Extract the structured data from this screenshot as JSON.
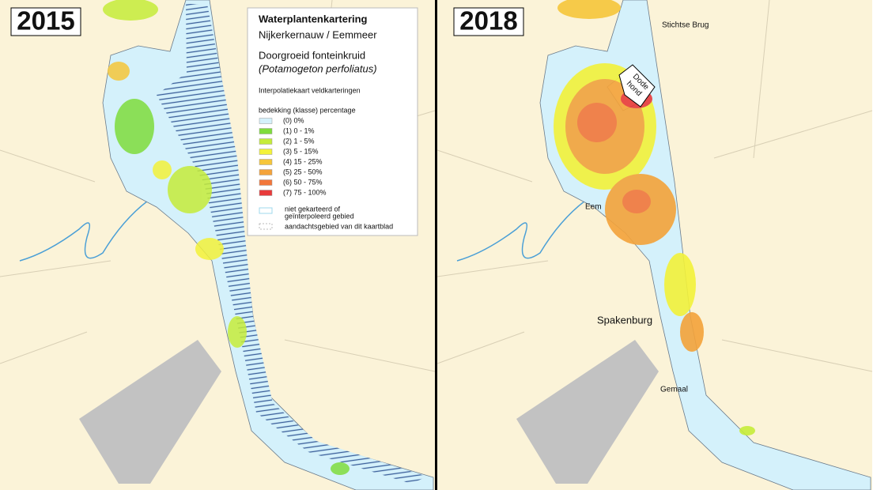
{
  "panels": [
    {
      "year": "2015"
    },
    {
      "year": "2018"
    }
  ],
  "legend": {
    "title": "Waterplantenkartering",
    "area": "Nijkerkernauw / Eemmeer",
    "species": "Doorgroeid fonteinkruid",
    "latin": "(Potamogeton perfoliatus)",
    "method": "Interpolatiekaart veldkarteringen",
    "scale_title": "bedekking (klasse) percentage",
    "classes": [
      {
        "label": "(0)  0%",
        "color": "#d4f1fb"
      },
      {
        "label": "(1)  0 - 1%",
        "color": "#7fdc3c"
      },
      {
        "label": "(2)  1 - 5%",
        "color": "#c5ec3a"
      },
      {
        "label": "(3)  5 - 15%",
        "color": "#f3f23a"
      },
      {
        "label": "(4)  15 - 25%",
        "color": "#f6c63a"
      },
      {
        "label": "(5)  25 - 50%",
        "color": "#f4a33a"
      },
      {
        "label": "(6)  50 - 75%",
        "color": "#f2763a"
      },
      {
        "label": "(7)  75 - 100%",
        "color": "#e83a3a"
      }
    ],
    "unmapped": [
      "niet gekarteerd of",
      "geïnterpoleerd gebied"
    ],
    "focus_area": "aandachtsgebied van dit kaartblad"
  },
  "places": {
    "bridge": "Stichtse Brug",
    "spot": [
      "Dode",
      "hond"
    ],
    "river": "Eem",
    "town": "Spakenburg",
    "pump": "Gemaal"
  }
}
